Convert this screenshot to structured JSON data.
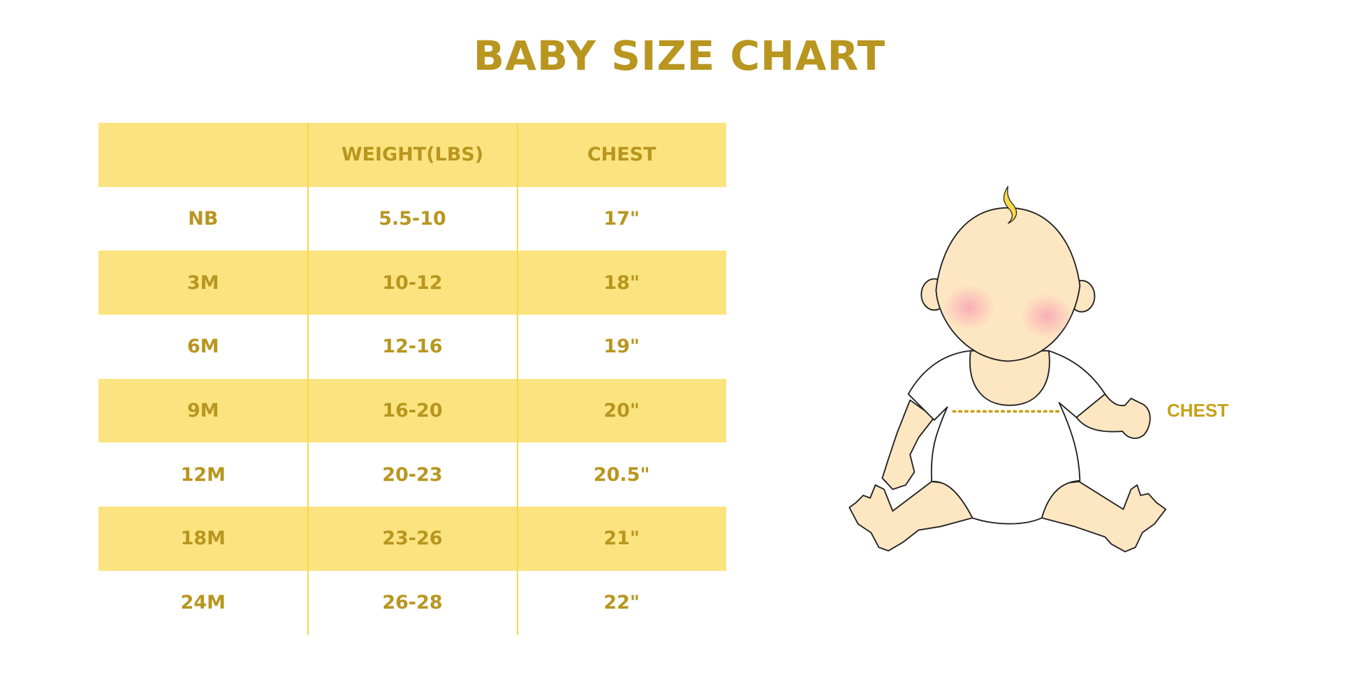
{
  "chart_data": {
    "type": "table",
    "title": "BABY SIZE CHART",
    "columns": [
      "",
      "WEIGHT(LBS)",
      "CHEST"
    ],
    "rows": [
      [
        "NB",
        "5.5-10",
        "17\""
      ],
      [
        "3M",
        "10-12",
        "18\""
      ],
      [
        "6M",
        "12-16",
        "19\""
      ],
      [
        "9M",
        "16-20",
        "20\""
      ],
      [
        "12M",
        "20-23",
        "20.5\""
      ],
      [
        "18M",
        "23-26",
        "21\""
      ],
      [
        "24M",
        "26-28",
        "22\""
      ]
    ]
  },
  "illustration": {
    "chest_label": "CHEST"
  },
  "colors": {
    "text": "#b8961f",
    "band": "#fbe47f",
    "divider": "#f7d94a",
    "skin": "#fde6c2"
  }
}
